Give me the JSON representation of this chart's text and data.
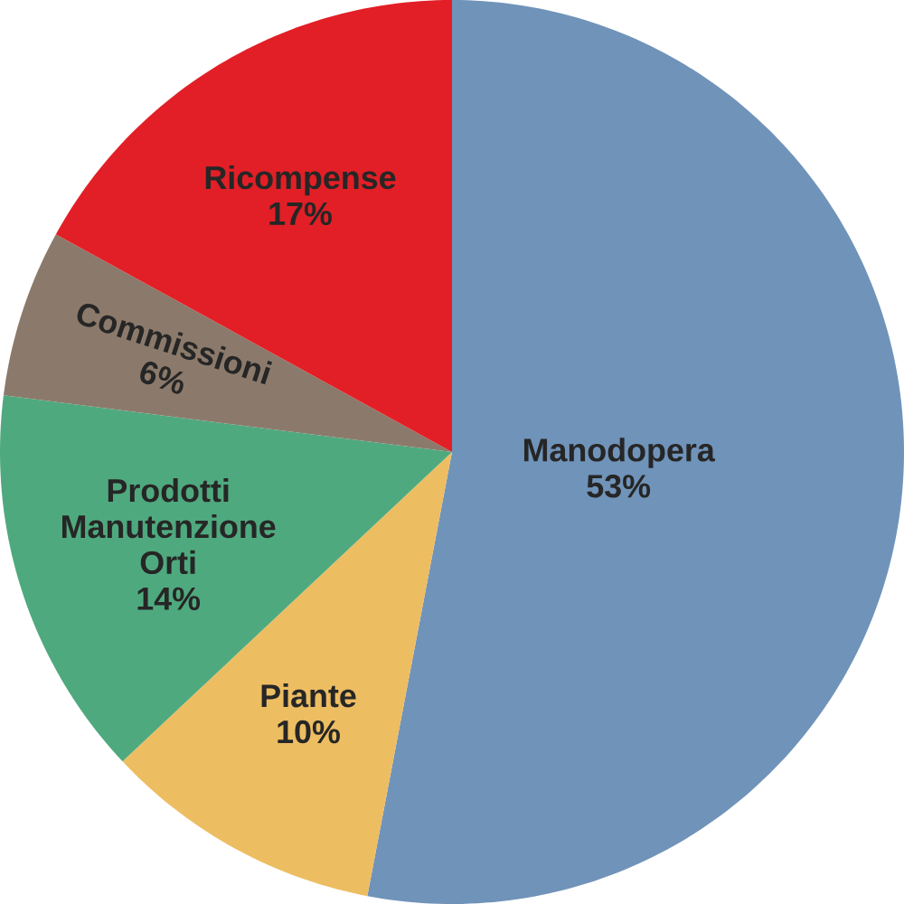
{
  "chart_data": {
    "type": "pie",
    "categories": [
      "Manodopera",
      "Piante",
      "Prodotti Manutenzione Orti",
      "Commissioni",
      "Ricompense"
    ],
    "values": [
      53,
      10,
      14,
      6,
      17
    ],
    "value_labels": [
      "53%",
      "10%",
      "14%",
      "6%",
      "17%"
    ],
    "colors": [
      "#7093b9",
      "#edbd62",
      "#4fa97e",
      "#8b7a6b",
      "#e21f26"
    ]
  }
}
